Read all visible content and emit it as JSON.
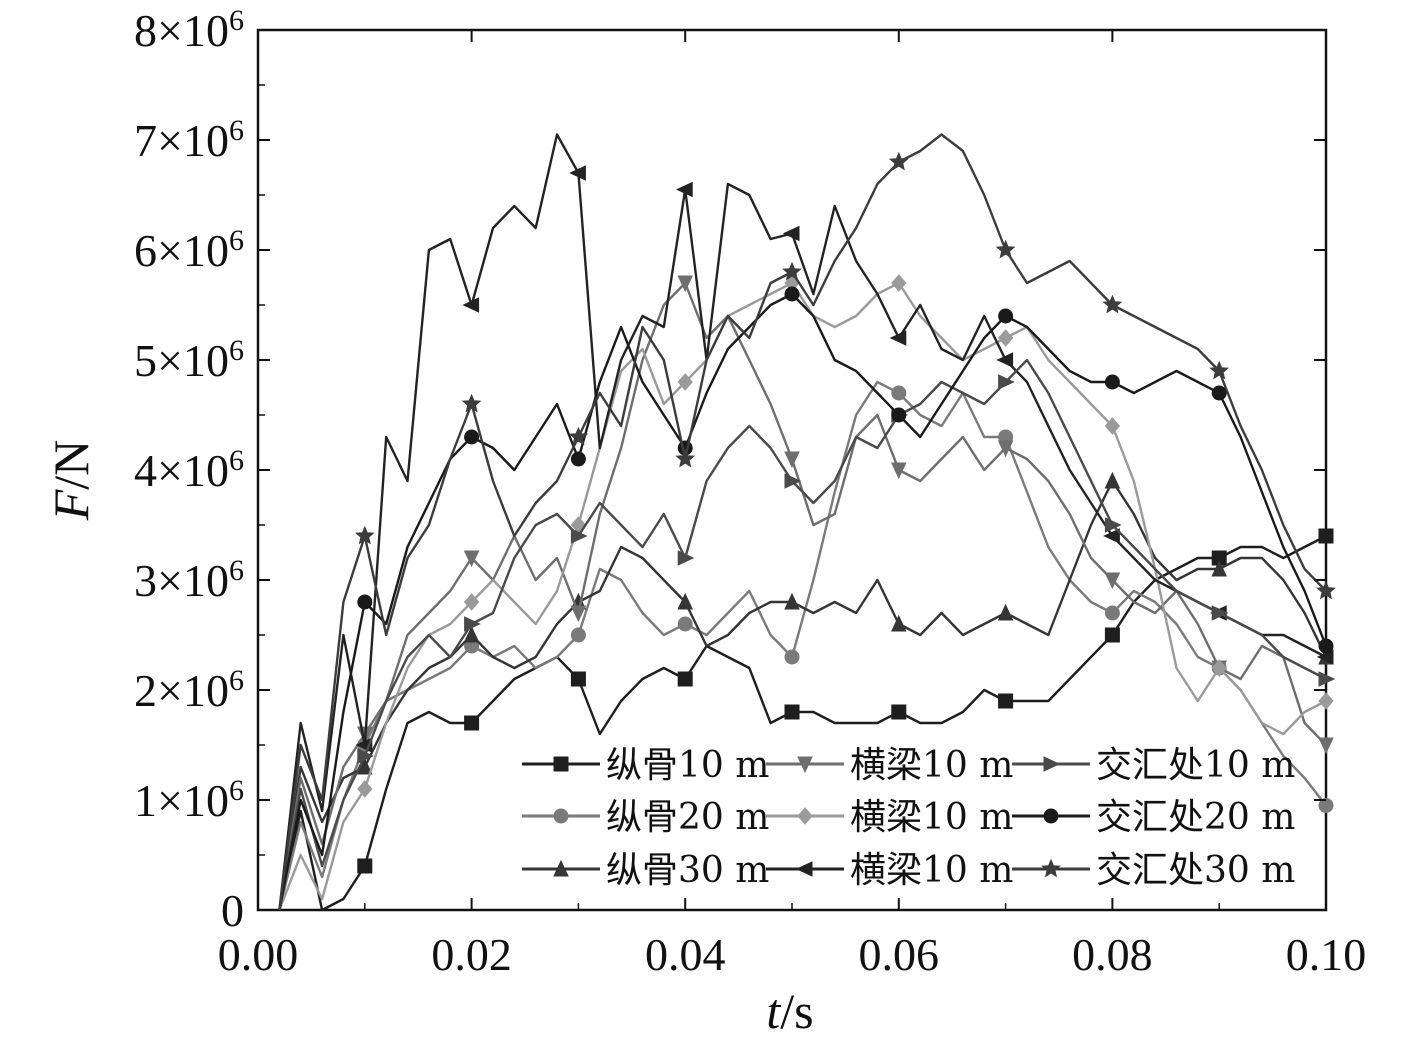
{
  "chart_data": {
    "type": "line",
    "title": "",
    "xlabel_var": "t",
    "xlabel_unit": "/s",
    "ylabel_var": "F",
    "ylabel_unit": "/N",
    "xlim": [
      0,
      0.1
    ],
    "ylim": [
      0,
      8000000
    ],
    "grid": false,
    "legend_position": "bottom-right",
    "x_ticks": [
      {
        "value": 0.0,
        "label": "0.00"
      },
      {
        "value": 0.02,
        "label": "0.02"
      },
      {
        "value": 0.04,
        "label": "0.04"
      },
      {
        "value": 0.06,
        "label": "0.06"
      },
      {
        "value": 0.08,
        "label": "0.08"
      },
      {
        "value": 0.1,
        "label": "0.10"
      }
    ],
    "y_ticks": [
      {
        "value": 0,
        "label": "0",
        "exp": ""
      },
      {
        "value": 1000000,
        "label": "1×10",
        "exp": "6"
      },
      {
        "value": 2000000,
        "label": "2×10",
        "exp": "6"
      },
      {
        "value": 3000000,
        "label": "3×10",
        "exp": "6"
      },
      {
        "value": 4000000,
        "label": "4×10",
        "exp": "6"
      },
      {
        "value": 5000000,
        "label": "5×10",
        "exp": "6"
      },
      {
        "value": 6000000,
        "label": "6×10",
        "exp": "6"
      },
      {
        "value": 7000000,
        "label": "7×10",
        "exp": "6"
      },
      {
        "value": 8000000,
        "label": "8×10",
        "exp": "6"
      }
    ],
    "series": [
      {
        "name": "纵骨10 m",
        "color": "#1e1e1e",
        "marker": "square",
        "x": [
          0.002,
          0.004,
          0.006,
          0.008,
          0.01,
          0.012,
          0.014,
          0.016,
          0.018,
          0.02,
          0.022,
          0.024,
          0.026,
          0.028,
          0.03,
          0.032,
          0.034,
          0.036,
          0.038,
          0.04,
          0.042,
          0.044,
          0.046,
          0.048,
          0.05,
          0.052,
          0.054,
          0.056,
          0.058,
          0.06,
          0.062,
          0.064,
          0.066,
          0.068,
          0.07,
          0.072,
          0.074,
          0.076,
          0.078,
          0.08,
          0.082,
          0.084,
          0.086,
          0.088,
          0.09,
          0.092,
          0.094,
          0.096,
          0.098,
          0.1
        ],
        "y": [
          0,
          900000,
          0,
          100000,
          400000,
          1100000,
          1700000,
          1800000,
          1700000,
          1700000,
          1900000,
          2100000,
          2200000,
          2300000,
          2100000,
          1600000,
          1900000,
          2100000,
          2200000,
          2100000,
          2400000,
          2300000,
          2200000,
          1700000,
          1800000,
          1800000,
          1700000,
          1700000,
          1700000,
          1800000,
          1700000,
          1700000,
          1800000,
          2000000,
          1900000,
          1900000,
          1900000,
          2100000,
          2300000,
          2500000,
          2800000,
          3000000,
          3100000,
          3200000,
          3200000,
          3300000,
          3300000,
          3200000,
          3300000,
          3400000
        ]
      },
      {
        "name": "纵骨20 m",
        "color": "#7a7a7a",
        "marker": "circle",
        "x": [
          0.002,
          0.004,
          0.006,
          0.008,
          0.01,
          0.012,
          0.014,
          0.016,
          0.018,
          0.02,
          0.022,
          0.024,
          0.026,
          0.028,
          0.03,
          0.032,
          0.034,
          0.036,
          0.038,
          0.04,
          0.042,
          0.044,
          0.046,
          0.048,
          0.05,
          0.052,
          0.054,
          0.056,
          0.058,
          0.06,
          0.062,
          0.064,
          0.066,
          0.068,
          0.07,
          0.072,
          0.074,
          0.076,
          0.078,
          0.08,
          0.082,
          0.084,
          0.086,
          0.088,
          0.09,
          0.092,
          0.094,
          0.096,
          0.098,
          0.1
        ],
        "y": [
          0,
          800000,
          300000,
          1000000,
          1500000,
          1900000,
          2000000,
          2100000,
          2200000,
          2400000,
          2300000,
          2400000,
          2200000,
          2300000,
          2500000,
          3100000,
          3000000,
          2700000,
          2500000,
          2600000,
          2500000,
          2700000,
          2900000,
          2500000,
          2300000,
          3000000,
          3800000,
          4500000,
          4800000,
          4700000,
          4500000,
          4400000,
          4700000,
          4300000,
          4300000,
          3800000,
          3300000,
          3000000,
          2800000,
          2700000,
          2900000,
          2800000,
          2600000,
          2300000,
          2200000,
          2000000,
          1700000,
          1400000,
          1200000,
          950000
        ]
      },
      {
        "name": "纵骨30 m",
        "color": "#353535",
        "marker": "triangle",
        "x": [
          0.002,
          0.004,
          0.006,
          0.008,
          0.01,
          0.012,
          0.014,
          0.016,
          0.018,
          0.02,
          0.022,
          0.024,
          0.026,
          0.028,
          0.03,
          0.032,
          0.034,
          0.036,
          0.038,
          0.04,
          0.042,
          0.044,
          0.046,
          0.048,
          0.05,
          0.052,
          0.054,
          0.056,
          0.058,
          0.06,
          0.062,
          0.064,
          0.066,
          0.068,
          0.07,
          0.072,
          0.074,
          0.076,
          0.078,
          0.08,
          0.082,
          0.084,
          0.086,
          0.088,
          0.09,
          0.092,
          0.094,
          0.096,
          0.098,
          0.1
        ],
        "y": [
          0,
          1300000,
          800000,
          1200000,
          1300000,
          1700000,
          2000000,
          2200000,
          2300000,
          2500000,
          2300000,
          2200000,
          2300000,
          2600000,
          2800000,
          2900000,
          3300000,
          3200000,
          3000000,
          2800000,
          2400000,
          2500000,
          2700000,
          2800000,
          2800000,
          2700000,
          2800000,
          2700000,
          3000000,
          2600000,
          2500000,
          2700000,
          2500000,
          2600000,
          2700000,
          2600000,
          2500000,
          3000000,
          3500000,
          3900000,
          3600000,
          3200000,
          3000000,
          3100000,
          3100000,
          3200000,
          3200000,
          3000000,
          2700000,
          2300000
        ]
      },
      {
        "name": "横梁10 m",
        "color": "#6e6e6e",
        "marker": "triangle-down",
        "x": [
          0.002,
          0.004,
          0.006,
          0.008,
          0.01,
          0.012,
          0.014,
          0.016,
          0.018,
          0.02,
          0.022,
          0.024,
          0.026,
          0.028,
          0.03,
          0.032,
          0.034,
          0.036,
          0.038,
          0.04,
          0.042,
          0.044,
          0.046,
          0.048,
          0.05,
          0.052,
          0.054,
          0.056,
          0.058,
          0.06,
          0.062,
          0.064,
          0.066,
          0.068,
          0.07,
          0.072,
          0.074,
          0.076,
          0.078,
          0.08,
          0.082,
          0.084,
          0.086,
          0.088,
          0.09,
          0.092,
          0.094,
          0.096,
          0.098,
          0.1
        ],
        "y": [
          0,
          1200000,
          600000,
          1300000,
          1600000,
          1900000,
          2500000,
          2700000,
          2900000,
          3200000,
          3000000,
          3400000,
          3000000,
          3200000,
          2700000,
          3600000,
          4200000,
          5000000,
          5500000,
          5700000,
          5200000,
          5400000,
          5000000,
          4600000,
          4100000,
          3500000,
          3600000,
          4300000,
          4500000,
          4000000,
          3900000,
          4100000,
          4300000,
          4000000,
          4200000,
          4100000,
          3900000,
          3600000,
          3200000,
          3000000,
          2800000,
          2700000,
          2900000,
          2600000,
          2200000,
          2100000,
          2400000,
          2300000,
          1700000,
          1500000
        ]
      },
      {
        "name": "横梁10 m",
        "color": "#9a9a9a",
        "marker": "diamond",
        "x": [
          0.002,
          0.004,
          0.006,
          0.008,
          0.01,
          0.012,
          0.014,
          0.016,
          0.018,
          0.02,
          0.022,
          0.024,
          0.026,
          0.028,
          0.03,
          0.032,
          0.034,
          0.036,
          0.038,
          0.04,
          0.042,
          0.044,
          0.046,
          0.048,
          0.05,
          0.052,
          0.054,
          0.056,
          0.058,
          0.06,
          0.062,
          0.064,
          0.066,
          0.068,
          0.07,
          0.072,
          0.074,
          0.076,
          0.078,
          0.08,
          0.082,
          0.084,
          0.086,
          0.088,
          0.09,
          0.092,
          0.094,
          0.096,
          0.098,
          0.1
        ],
        "y": [
          0,
          500000,
          100000,
          800000,
          1100000,
          1700000,
          2200000,
          2500000,
          2600000,
          2800000,
          3000000,
          2800000,
          2600000,
          2900000,
          3500000,
          4200000,
          4900000,
          5100000,
          4600000,
          4800000,
          5000000,
          5400000,
          5500000,
          5600000,
          5700000,
          5400000,
          5300000,
          5400000,
          5600000,
          5700000,
          5400000,
          5200000,
          5000000,
          5100000,
          5200000,
          5300000,
          5000000,
          4800000,
          4600000,
          4400000,
          3900000,
          3100000,
          2200000,
          1900000,
          2200000,
          2000000,
          1700000,
          1600000,
          1800000,
          1900000
        ]
      },
      {
        "name": "横梁10 m",
        "color": "#232323",
        "marker": "triangle-left",
        "x": [
          0.002,
          0.004,
          0.006,
          0.008,
          0.01,
          0.012,
          0.014,
          0.016,
          0.018,
          0.02,
          0.022,
          0.024,
          0.026,
          0.028,
          0.03,
          0.032,
          0.034,
          0.036,
          0.038,
          0.04,
          0.042,
          0.044,
          0.046,
          0.048,
          0.05,
          0.052,
          0.054,
          0.056,
          0.058,
          0.06,
          0.062,
          0.064,
          0.066,
          0.068,
          0.07,
          0.072,
          0.074,
          0.076,
          0.078,
          0.08,
          0.082,
          0.084,
          0.086,
          0.088,
          0.09,
          0.092,
          0.094,
          0.096,
          0.098,
          0.1
        ],
        "y": [
          0,
          1700000,
          900000,
          2500000,
          1500000,
          4300000,
          3900000,
          6000000,
          6100000,
          5500000,
          6200000,
          6400000,
          6200000,
          7050000,
          6700000,
          4200000,
          5000000,
          5400000,
          5300000,
          6550000,
          5000000,
          6600000,
          6500000,
          6100000,
          6150000,
          5600000,
          6400000,
          5900000,
          5600000,
          5200000,
          5500000,
          5100000,
          5000000,
          5400000,
          5000000,
          4800000,
          4400000,
          4000000,
          3700000,
          3400000,
          3200000,
          3000000,
          2900000,
          2800000,
          2700000,
          2600000,
          2500000,
          2500000,
          2400000,
          2300000
        ]
      },
      {
        "name": "交汇处10 m",
        "color": "#4a4a4a",
        "marker": "triangle-right",
        "x": [
          0.002,
          0.004,
          0.006,
          0.008,
          0.01,
          0.012,
          0.014,
          0.016,
          0.018,
          0.02,
          0.022,
          0.024,
          0.026,
          0.028,
          0.03,
          0.032,
          0.034,
          0.036,
          0.038,
          0.04,
          0.042,
          0.044,
          0.046,
          0.048,
          0.05,
          0.052,
          0.054,
          0.056,
          0.058,
          0.06,
          0.062,
          0.064,
          0.066,
          0.068,
          0.07,
          0.072,
          0.074,
          0.076,
          0.078,
          0.08,
          0.082,
          0.084,
          0.086,
          0.088,
          0.09,
          0.092,
          0.094,
          0.096,
          0.098,
          0.1
        ],
        "y": [
          0,
          1100000,
          400000,
          1000000,
          1400000,
          1900000,
          2300000,
          2500000,
          2300000,
          2600000,
          2700000,
          3200000,
          3500000,
          3600000,
          3400000,
          3700000,
          3500000,
          3300000,
          3600000,
          3200000,
          3900000,
          4200000,
          4400000,
          4200000,
          3900000,
          3700000,
          3900000,
          4300000,
          4200000,
          4500000,
          4600000,
          4800000,
          4700000,
          4600000,
          4800000,
          5000000,
          4700000,
          4300000,
          3900000,
          3500000,
          3300000,
          3100000,
          2900000,
          2800000,
          2700000,
          2600000,
          2500000,
          2300000,
          2200000,
          2100000
        ]
      },
      {
        "name": "交汇处20 m",
        "color": "#1a1a1a",
        "marker": "circle",
        "x": [
          0.002,
          0.004,
          0.006,
          0.008,
          0.01,
          0.012,
          0.014,
          0.016,
          0.018,
          0.02,
          0.022,
          0.024,
          0.026,
          0.028,
          0.03,
          0.032,
          0.034,
          0.036,
          0.038,
          0.04,
          0.042,
          0.044,
          0.046,
          0.048,
          0.05,
          0.052,
          0.054,
          0.056,
          0.058,
          0.06,
          0.062,
          0.064,
          0.066,
          0.068,
          0.07,
          0.072,
          0.074,
          0.076,
          0.078,
          0.08,
          0.082,
          0.084,
          0.086,
          0.088,
          0.09,
          0.092,
          0.094,
          0.096,
          0.098,
          0.1
        ],
        "y": [
          0,
          1000000,
          500000,
          1800000,
          2800000,
          2600000,
          3300000,
          3700000,
          4100000,
          4300000,
          4200000,
          4000000,
          4300000,
          4600000,
          4100000,
          4800000,
          5300000,
          4800000,
          4500000,
          4200000,
          4700000,
          5100000,
          5300000,
          5500000,
          5600000,
          5400000,
          5000000,
          4900000,
          4700000,
          4500000,
          4300000,
          4600000,
          4900000,
          5200000,
          5400000,
          5300000,
          5100000,
          4900000,
          4800000,
          4800000,
          4700000,
          4800000,
          4900000,
          4800000,
          4700000,
          4300000,
          3800000,
          3300000,
          2900000,
          2400000
        ]
      },
      {
        "name": "交汇处30 m",
        "color": "#3c3c3c",
        "marker": "star",
        "x": [
          0.002,
          0.004,
          0.006,
          0.008,
          0.01,
          0.012,
          0.014,
          0.016,
          0.018,
          0.02,
          0.022,
          0.024,
          0.026,
          0.028,
          0.03,
          0.032,
          0.034,
          0.036,
          0.038,
          0.04,
          0.042,
          0.044,
          0.046,
          0.048,
          0.05,
          0.052,
          0.054,
          0.056,
          0.058,
          0.06,
          0.062,
          0.064,
          0.066,
          0.068,
          0.07,
          0.072,
          0.074,
          0.076,
          0.078,
          0.08,
          0.082,
          0.084,
          0.086,
          0.088,
          0.09,
          0.092,
          0.094,
          0.096,
          0.098,
          0.1
        ],
        "y": [
          0,
          1500000,
          1000000,
          2800000,
          3400000,
          2500000,
          3200000,
          3500000,
          4100000,
          4600000,
          3900000,
          3400000,
          3700000,
          3900000,
          4300000,
          4700000,
          4400000,
          5300000,
          5000000,
          4100000,
          5000000,
          5400000,
          5200000,
          5700000,
          5800000,
          5500000,
          5900000,
          6200000,
          6600000,
          6800000,
          6900000,
          7050000,
          6900000,
          6500000,
          6000000,
          5700000,
          5800000,
          5900000,
          5700000,
          5500000,
          5400000,
          5300000,
          5200000,
          5100000,
          4900000,
          4400000,
          4000000,
          3500000,
          3100000,
          2900000
        ]
      }
    ]
  }
}
